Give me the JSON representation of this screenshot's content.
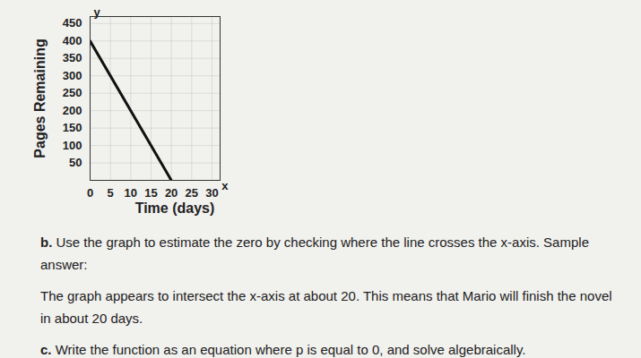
{
  "chart_data": {
    "type": "line",
    "x_label": "Time (days)",
    "y_label": "Pages Remaining",
    "axis_letters": {
      "x": "x",
      "y": "y"
    },
    "x": [
      0,
      20
    ],
    "values": [
      400,
      0
    ],
    "color": "#111111",
    "xlim": [
      0,
      32
    ],
    "xticks": [
      0,
      5,
      10,
      15,
      20,
      25,
      30
    ],
    "ylim": [
      0,
      470
    ],
    "yticks": [
      50,
      100,
      150,
      200,
      250,
      300,
      350,
      400,
      450
    ],
    "grid": true
  },
  "document": {
    "paragraphs": [
      {
        "label": "b.",
        "text": "Use the graph to estimate the zero by checking where the line crosses the x-axis. Sample answer:"
      },
      {
        "label": "",
        "text": "The graph appears to intersect the x-axis at about 20. This means that Mario will finish the novel in about 20 days."
      },
      {
        "label": "c.",
        "text": "Write the function as an equation where p is equal to 0, and solve algebraically."
      }
    ]
  }
}
